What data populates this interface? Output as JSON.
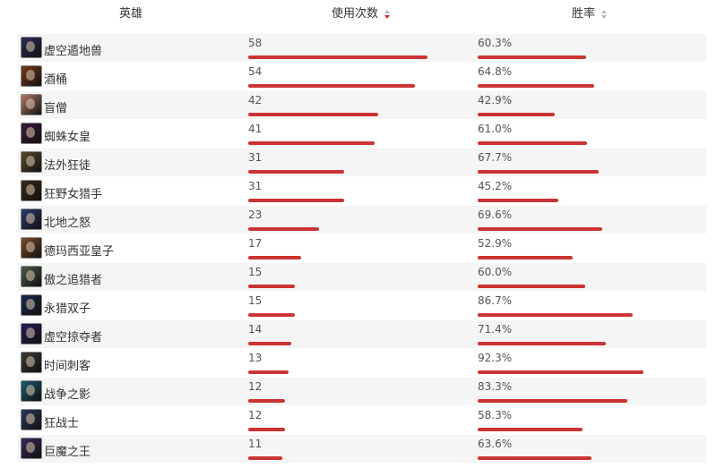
{
  "header": {
    "hero": "英雄",
    "uses": "使用次数",
    "win_rate": "胜率"
  },
  "colors": {
    "bar": "#cb3434",
    "sort_active": "#d9292f",
    "sort_inactive": "#b8b8b8"
  },
  "rows": [
    {
      "name": "虚空遁地兽",
      "uses": 58,
      "uses_label": "58",
      "win": 60.3,
      "win_label": "60.3%",
      "icon": "champion-portrait-icon",
      "tone": "#2a2f5a"
    },
    {
      "name": "酒桶",
      "uses": 54,
      "uses_label": "54",
      "win": 64.8,
      "win_label": "64.8%",
      "icon": "champion-portrait-icon",
      "tone": "#7a3a1c"
    },
    {
      "name": "盲僧",
      "uses": 42,
      "uses_label": "42",
      "win": 42.9,
      "win_label": "42.9%",
      "icon": "champion-portrait-icon",
      "tone": "#b07a64"
    },
    {
      "name": "蜘蛛女皇",
      "uses": 41,
      "uses_label": "41",
      "win": 61.0,
      "win_label": "61.0%",
      "icon": "champion-portrait-icon",
      "tone": "#3a1c3a"
    },
    {
      "name": "法外狂徒",
      "uses": 31,
      "uses_label": "31",
      "win": 67.7,
      "win_label": "67.7%",
      "icon": "champion-portrait-icon",
      "tone": "#5a4a2a"
    },
    {
      "name": "狂野女猎手",
      "uses": 31,
      "uses_label": "31",
      "win": 45.2,
      "win_label": "45.2%",
      "icon": "champion-portrait-icon",
      "tone": "#3a2a1a"
    },
    {
      "name": "北地之怒",
      "uses": 23,
      "uses_label": "23",
      "win": 69.6,
      "win_label": "69.6%",
      "icon": "champion-portrait-icon",
      "tone": "#2a3a6a"
    },
    {
      "name": "德玛西亚皇子",
      "uses": 17,
      "uses_label": "17",
      "win": 52.9,
      "win_label": "52.9%",
      "icon": "champion-portrait-icon",
      "tone": "#7a4a2a"
    },
    {
      "name": "傲之追猎者",
      "uses": 15,
      "uses_label": "15",
      "win": 60.0,
      "win_label": "60.0%",
      "icon": "champion-portrait-icon",
      "tone": "#4a5a4a"
    },
    {
      "name": "永猎双子",
      "uses": 15,
      "uses_label": "15",
      "win": 86.7,
      "win_label": "86.7%",
      "icon": "champion-portrait-icon",
      "tone": "#1a2a4a"
    },
    {
      "name": "虚空掠夺者",
      "uses": 14,
      "uses_label": "14",
      "win": 71.4,
      "win_label": "71.4%",
      "icon": "champion-portrait-icon",
      "tone": "#2a1a5a"
    },
    {
      "name": "时间刺客",
      "uses": 13,
      "uses_label": "13",
      "win": 92.3,
      "win_label": "92.3%",
      "icon": "champion-portrait-icon",
      "tone": "#3a3a3a"
    },
    {
      "name": "战争之影",
      "uses": 12,
      "uses_label": "12",
      "win": 83.3,
      "win_label": "83.3%",
      "icon": "champion-portrait-icon",
      "tone": "#1a5a6a"
    },
    {
      "name": "狂战士",
      "uses": 12,
      "uses_label": "12",
      "win": 58.3,
      "win_label": "58.3%",
      "icon": "champion-portrait-icon",
      "tone": "#2a3a5a"
    },
    {
      "name": "巨魔之王",
      "uses": 11,
      "uses_label": "11",
      "win": 63.6,
      "win_label": "63.6%",
      "icon": "champion-portrait-icon",
      "tone": "#3a2a5a"
    }
  ]
}
